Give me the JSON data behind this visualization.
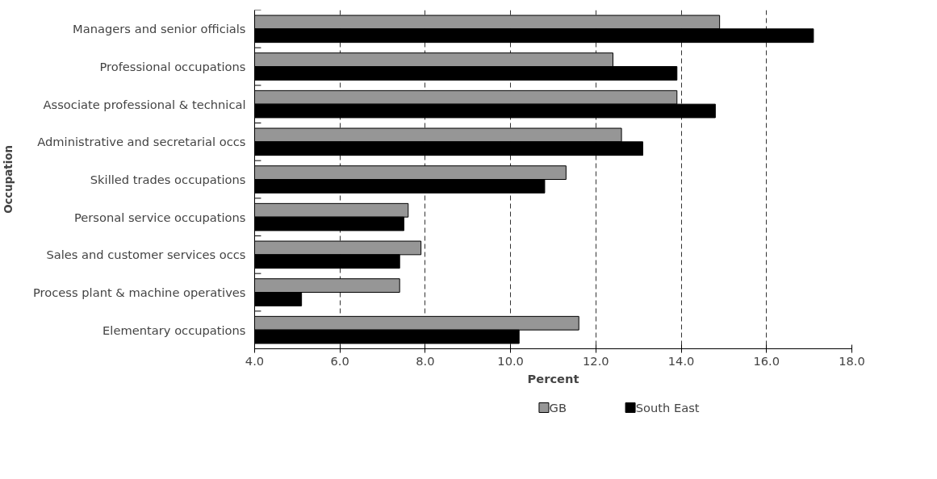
{
  "chart_data": {
    "type": "bar",
    "orientation": "horizontal",
    "xlabel": "Percent",
    "ylabel": "Occupation",
    "categories": [
      "Managers and senior officials",
      "Professional occupations",
      "Associate professional & technical",
      "Administrative and secretarial occs",
      "Skilled trades occupations",
      "Personal service occupations",
      "Sales and customer services occs",
      "Process plant & machine operatives",
      "Elementary occupations"
    ],
    "series": [
      {
        "name": "GB",
        "color": "#969696",
        "values": [
          14.9,
          12.4,
          13.9,
          12.6,
          11.3,
          7.6,
          7.9,
          7.4,
          11.6
        ]
      },
      {
        "name": "South East",
        "color": "#000000",
        "values": [
          17.1,
          13.9,
          14.8,
          13.1,
          10.8,
          7.5,
          7.4,
          5.1,
          10.2
        ]
      }
    ],
    "xlim": [
      4.0,
      18.0
    ],
    "xticks": [
      {
        "value": 4,
        "label": "4.0"
      },
      {
        "value": 6,
        "label": "6.0"
      },
      {
        "value": 8,
        "label": "8.0"
      },
      {
        "value": 10,
        "label": "10.0"
      },
      {
        "value": 12,
        "label": "12.0"
      },
      {
        "value": 14,
        "label": "14.0"
      },
      {
        "value": 16,
        "label": "16.0"
      },
      {
        "value": 18,
        "label": "18.0"
      }
    ],
    "grid": "x",
    "legend": "bottom"
  }
}
